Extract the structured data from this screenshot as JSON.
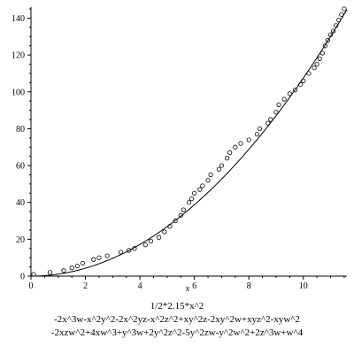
{
  "chart_data": {
    "type": "scatter",
    "xlabel": "x",
    "ylabel": "",
    "xlim": [
      0,
      11.6
    ],
    "ylim": [
      0,
      146
    ],
    "x_ticks": [
      0,
      2,
      4,
      6,
      8,
      10
    ],
    "y_ticks": [
      0,
      20,
      40,
      60,
      80,
      100,
      120,
      140
    ],
    "grid": false,
    "curve_coefficient": 1.075,
    "series": [
      {
        "kind": "points",
        "marker": "circle-open",
        "x": [
          0.1,
          0.7,
          1.2,
          1.5,
          1.7,
          1.9,
          2.3,
          2.5,
          2.8,
          3.3,
          3.6,
          3.8,
          4.2,
          4.4,
          4.7,
          4.9,
          5.1,
          5.3,
          5.5,
          5.6,
          5.8,
          5.9,
          6.0,
          6.2,
          6.3,
          6.5,
          6.6,
          6.9,
          7.0,
          7.2,
          7.3,
          7.5,
          7.7,
          8.0,
          8.3,
          8.4,
          8.7,
          8.8,
          9.0,
          9.1,
          9.3,
          9.5,
          9.7,
          9.9,
          10.0,
          10.2,
          10.4,
          10.5,
          10.6,
          10.7,
          10.8,
          10.9,
          11.0,
          11.1,
          11.2,
          11.3,
          11.4,
          11.5
        ],
        "y": [
          1,
          2,
          3,
          4.5,
          5.5,
          7,
          9,
          10,
          11,
          13,
          14,
          15,
          17,
          19,
          21,
          24,
          27,
          30,
          33,
          36,
          40,
          42,
          45,
          47,
          49,
          52,
          55,
          58,
          60,
          64,
          67,
          70,
          72,
          74,
          77,
          80,
          83,
          85,
          89,
          93,
          96,
          99,
          101,
          104,
          106,
          110,
          113,
          115,
          118,
          121,
          125,
          128,
          131,
          133,
          136,
          139,
          142,
          145
        ]
      }
    ],
    "caption_lines": [
      "1/2*2.15*x^2",
      "-2x^3w-x^2y^2-2x^2yz-x^2z^2+xy^2z-2xy^2w+xyz^2-xyw^2",
      "-2xzw^2+4xw^3+y^3w+2y^2z^2-5y^2zw-y^2w^2+2z^3w+w^4"
    ]
  }
}
